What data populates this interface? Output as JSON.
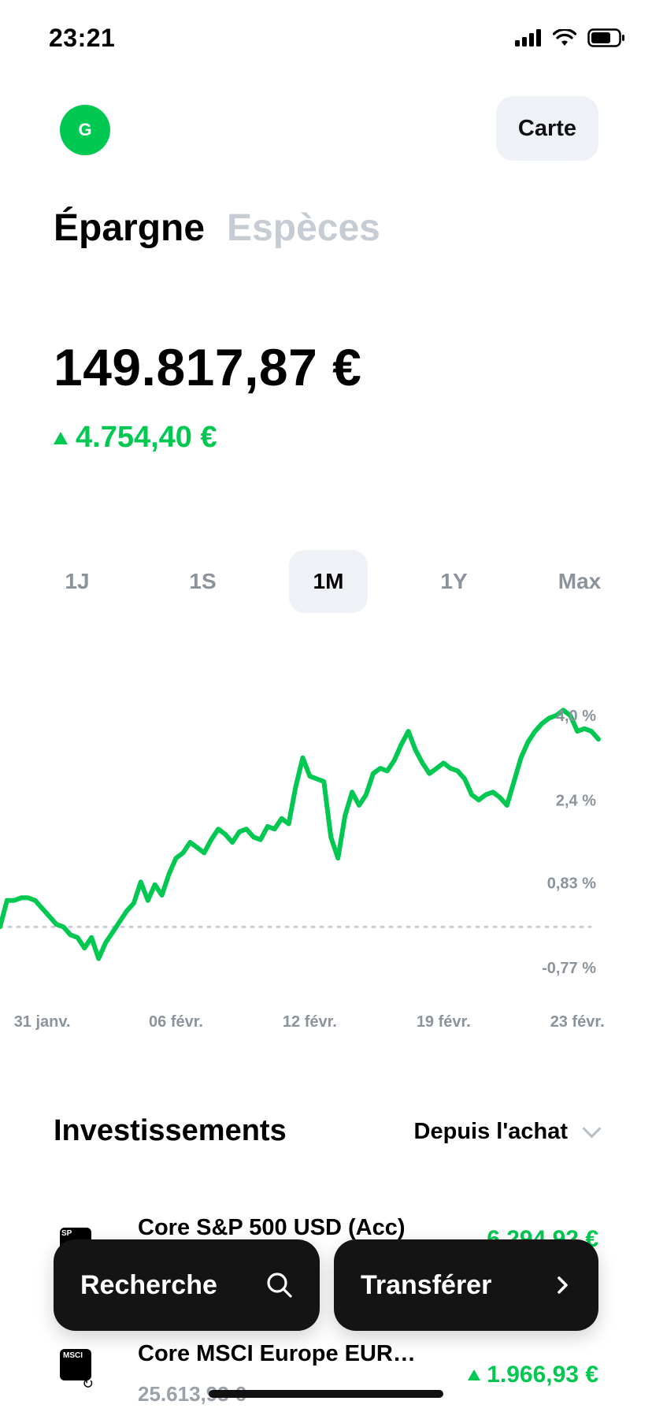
{
  "status_bar": {
    "time": "23:21"
  },
  "header": {
    "avatar_initial": "G",
    "card_button_label": "Carte"
  },
  "tabs": [
    {
      "label": "Épargne",
      "active": true
    },
    {
      "label": "Espèces",
      "active": false
    }
  ],
  "balance": {
    "amount": "149.817,87 €",
    "change": "4.754,40 €",
    "change_direction": "up"
  },
  "ranges": [
    {
      "label": "1J",
      "active": false
    },
    {
      "label": "1S",
      "active": false
    },
    {
      "label": "1M",
      "active": true
    },
    {
      "label": "1Y",
      "active": false
    },
    {
      "label": "Max",
      "active": false
    }
  ],
  "chart_data": {
    "type": "line",
    "y_tick_labels": [
      "4,0 %",
      "2,4 %",
      "0,83 %",
      "-0,77 %"
    ],
    "y_ticks": [
      4.0,
      2.4,
      0.83,
      -0.77
    ],
    "ylim": [
      -0.77,
      4.0
    ],
    "x_tick_labels": [
      "31 janv.",
      "06 févr.",
      "12 févr.",
      "19 févr.",
      "23 févr."
    ],
    "x_tick_index": [
      6,
      25,
      44,
      63,
      82
    ],
    "baseline": 0,
    "color": "#00c851",
    "series": [
      {
        "values": [
          0.0,
          0.5,
          0.5,
          0.55,
          0.55,
          0.5,
          0.35,
          0.2,
          0.05,
          0.0,
          -0.15,
          -0.2,
          -0.4,
          -0.2,
          -0.6,
          -0.3,
          -0.1,
          0.1,
          0.3,
          0.45,
          0.85,
          0.5,
          0.8,
          0.6,
          1.0,
          1.3,
          1.4,
          1.6,
          1.5,
          1.4,
          1.65,
          1.85,
          1.75,
          1.6,
          1.8,
          1.85,
          1.7,
          1.65,
          1.9,
          1.85,
          2.05,
          1.95,
          2.65,
          3.2,
          2.85,
          2.8,
          2.75,
          1.7,
          1.3,
          2.1,
          2.55,
          2.3,
          2.5,
          2.9,
          3.0,
          2.95,
          3.15,
          3.45,
          3.7,
          3.35,
          3.1,
          2.9,
          3.0,
          3.1,
          3.0,
          2.95,
          2.8,
          2.5,
          2.4,
          2.5,
          2.55,
          2.45,
          2.3,
          2.75,
          3.2,
          3.5,
          3.7,
          3.85,
          3.95,
          4.0,
          4.1,
          4.0,
          3.7,
          3.75,
          3.7,
          3.55
        ]
      }
    ]
  },
  "investments": {
    "title": "Investissements",
    "sort_label": "Depuis l'achat",
    "items": [
      {
        "icon_text": "SP",
        "name": "Core S&P 500 USD (Acc)",
        "sub": "",
        "change": "6.294,92 €"
      },
      {
        "icon_text": "MSCI",
        "name": "Core MSCI Europe EUR…",
        "sub": "25.613,93 €",
        "change": "1.966,93 €"
      }
    ]
  },
  "actions": {
    "search_label": "Recherche",
    "transfer_label": "Transférer"
  }
}
